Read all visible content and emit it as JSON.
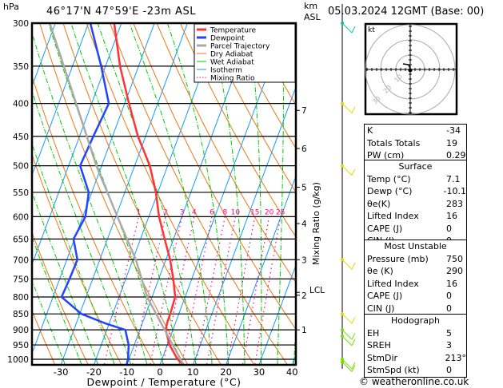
{
  "header": {
    "pressure_unit": "hPa",
    "location": "46°17'N 47°59'E -23m ASL",
    "height_unit": "km",
    "height_ref": "ASL",
    "datetime": "05.03.2024 12GMT (Base: 00)"
  },
  "chart_data": {
    "type": "line",
    "subtype": "skew-T log-P",
    "xlabel": "Dewpoint / Temperature (°C)",
    "ylabel": "hPa",
    "right_label": "Mixing Ratio (g/kg)",
    "xlim": [
      -40,
      40
    ],
    "ylim_hpa": [
      1020,
      300
    ],
    "x_ticks": [
      -30,
      -20,
      -10,
      0,
      10,
      20,
      30,
      40
    ],
    "pressure_levels": [
      300,
      350,
      400,
      450,
      500,
      550,
      600,
      650,
      700,
      750,
      800,
      850,
      900,
      950,
      1000
    ],
    "km_ticks": [
      {
        "km": "1",
        "p": 900
      },
      {
        "km": "2",
        "p": 795
      },
      {
        "km": "3",
        "p": 700
      },
      {
        "km": "4",
        "p": 615
      },
      {
        "km": "5",
        "p": 540
      },
      {
        "km": "6",
        "p": 470
      },
      {
        "km": "7",
        "p": 410
      }
    ],
    "lcl": {
      "label": "LCL",
      "p": 787
    },
    "mixing_ratio_lines": [
      1,
      2,
      3,
      4,
      6,
      8,
      10,
      15,
      20,
      25
    ],
    "mixing_ratio_label_p": 600,
    "legend": [
      {
        "label": "Temperature",
        "color": "#ff3333"
      },
      {
        "label": "Dewpoint",
        "color": "#2244ff"
      },
      {
        "label": "Parcel Trajectory",
        "color": "#aaaaaa"
      },
      {
        "label": "Dry Adiabat",
        "color": "#ee7711"
      },
      {
        "label": "Wet Adiabat",
        "color": "#00cc00"
      },
      {
        "label": "Isotherm",
        "color": "#1199ff"
      },
      {
        "label": "Mixing Ratio",
        "color": "#ff0088"
      }
    ],
    "series": [
      {
        "name": "Temperature",
        "color": "#ff3333",
        "p": [
          1020,
          1000,
          950,
          900,
          870,
          850,
          800,
          750,
          700,
          650,
          600,
          550,
          500,
          450,
          400,
          350,
          300
        ],
        "t": [
          7.1,
          4.7,
          0.7,
          -2.2,
          -2.6,
          -2.6,
          -3.0,
          -5.6,
          -8.7,
          -12.7,
          -16.9,
          -20.6,
          -25.4,
          -32.3,
          -38.7,
          -45.6,
          -52.2
        ]
      },
      {
        "name": "Dewpoint",
        "color": "#2244ff",
        "p": [
          1020,
          1000,
          950,
          900,
          880,
          850,
          800,
          750,
          700,
          650,
          600,
          550,
          500,
          450,
          400,
          350,
          300
        ],
        "t": [
          -10.1,
          -10.3,
          -11.7,
          -14.4,
          -21,
          -29.5,
          -37.4,
          -37.0,
          -36.8,
          -40.3,
          -39.2,
          -40.9,
          -46.5,
          -45.8,
          -44.8,
          -51.3,
          -59.4
        ]
      },
      {
        "name": "Parcel Trajectory",
        "color": "#aaaaaa",
        "p": [
          1020,
          900,
          800,
          700,
          600,
          500,
          400,
          300
        ],
        "t": [
          7.1,
          -2.5,
          -11.5,
          -19.1,
          -29.5,
          -41.6,
          -54.7,
          -71.7
        ]
      }
    ],
    "winds": [
      {
        "p": 1010,
        "color": "#77dd00"
      },
      {
        "p": 1000,
        "color": "#77dd00"
      },
      {
        "p": 920,
        "color": "#77dd00"
      },
      {
        "p": 900,
        "color": "#77dd00"
      },
      {
        "p": 850,
        "color": "#dddd00"
      },
      {
        "p": 700,
        "color": "#dddd00"
      },
      {
        "p": 500,
        "color": "#dddd00"
      },
      {
        "p": 400,
        "color": "#dddd00"
      },
      {
        "p": 300,
        "color": "#00cc99"
      }
    ]
  },
  "hodograph": {
    "unit": "kt",
    "rings": [
      "10",
      "20",
      "30"
    ]
  },
  "indices": {
    "rows": [
      {
        "label": "K",
        "value": "-34"
      },
      {
        "label": "Totals Totals",
        "value": "19"
      },
      {
        "label": "PW (cm)",
        "value": "0.29"
      }
    ]
  },
  "surface": {
    "title": "Surface",
    "rows": [
      {
        "label": "Temp (°C)",
        "value": "7.1"
      },
      {
        "label": "Dewp (°C)",
        "value": "-10.1"
      },
      {
        "label": "θe(K)",
        "value": "283"
      },
      {
        "label": "Lifted Index",
        "value": "16"
      },
      {
        "label": "CAPE (J)",
        "value": "0"
      },
      {
        "label": "CIN (J)",
        "value": "0"
      }
    ]
  },
  "most_unstable": {
    "title": "Most Unstable",
    "rows": [
      {
        "label": "Pressure (mb)",
        "value": "750"
      },
      {
        "label": "θe (K)",
        "value": "290"
      },
      {
        "label": "Lifted Index",
        "value": "16"
      },
      {
        "label": "CAPE (J)",
        "value": "0"
      },
      {
        "label": "CIN (J)",
        "value": "0"
      }
    ]
  },
  "hodograph_table": {
    "title": "Hodograph",
    "rows": [
      {
        "label": "EH",
        "value": "5"
      },
      {
        "label": "SREH",
        "value": "3"
      },
      {
        "label": "StmDir",
        "value": "213°"
      },
      {
        "label": "StmSpd (kt)",
        "value": "0"
      }
    ]
  },
  "footer": {
    "copyright": "© weatheronline.co.uk"
  }
}
